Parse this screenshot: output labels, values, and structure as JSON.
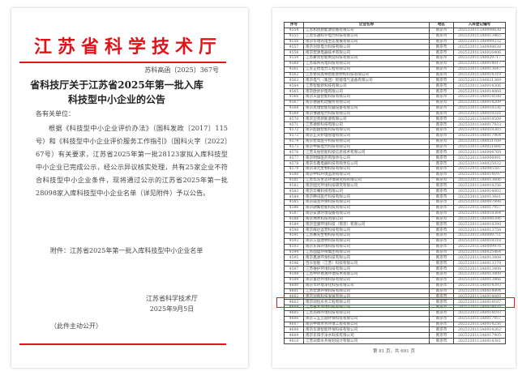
{
  "notice": {
    "org": "江苏省科学技术厅",
    "doc_number": "苏科高函〔2025〕367号",
    "title_line1": "省科技厅关于江苏省2025年第一批入库",
    "title_line2": "科技型中小企业的公告",
    "salutation": "各有关单位：",
    "body": "根据《科技型中小企业评价办法》（国科发政〔2017〕115号）和《科技型中小企业评价服务工作指引》（国科火字〔2022〕67号）有关要求，江苏省2025年第一批28123家拟入库科技型中小企业已完成公示，经公示异议核实处理，共有25家企业不符合科技型中小企业条件，现将通过公示的江苏省2025年第一批28098家入库科技型中小企业名单（详见附件）予以公告。",
    "attachment": "附件：江苏省2025年第一批入库科技型中小企业名单",
    "signer": "江苏省科学技术厅",
    "date": "2025年9月5日",
    "disclosure": "（此件主动公开）"
  },
  "colors": {
    "red": "#e0131b",
    "highlight": "#d01f2a"
  },
  "table": {
    "headers": [
      "序号",
      "企业名称",
      "地区",
      "入库登记编号"
    ],
    "highlighted_no": "4603",
    "rows": [
      [
        "4554",
        "江苏和创新能源装备有限公司",
        "南京市",
        "2025320113A0008630"
      ],
      [
        "4555",
        "江苏华通科学电力科技有限公司",
        "南京市",
        "2025320113A0013465"
      ],
      [
        "4556",
        "南京华瑞光电生态发展有限公司",
        "南京市",
        "2025320113A0009232"
      ],
      [
        "4557",
        "南京创思电力科技有限公司",
        "南京市",
        "2025320113A0008638"
      ],
      [
        "4558",
        "南京宏源电器技术有限公司",
        "南京市",
        "2025320113A0016406"
      ],
      [
        "4559",
        "江苏聚贤智能制造科技有限公司",
        "南京市",
        "2025320113A0029717"
      ],
      [
        "4560",
        "江苏森邦光电科技有限公司",
        "南京市",
        "2025320113A0014017"
      ],
      [
        "4561",
        "江苏正稳电力工程有限公司",
        "南京市",
        "2025320113A0013647"
      ],
      [
        "4562",
        "江苏协同高导智能新材料科技有限公司",
        "南京市",
        "2025320113A0014319"
      ],
      [
        "4563",
        "南京电气（集团）智能电气设备有限公司",
        "南京市",
        "2025320113A0021369"
      ],
      [
        "4564",
        "江苏智能新科技有限公司",
        "南京市",
        "2025320113A0014306"
      ],
      [
        "4565",
        "南京欧昇护理有限公司",
        "南京市",
        "2025320113A0014068"
      ],
      [
        "4566",
        "南京天盛智能科技有限公司",
        "南京市",
        "2025320113A0014188"
      ],
      [
        "4567",
        "南京德嘉机动服务有限公司",
        "南京市",
        "2025320113A0014209"
      ],
      [
        "4568",
        "南京思瑞智能仪器设备有限公司",
        "南京市",
        "2025320113A0018336"
      ],
      [
        "4569",
        "南京博通电力科技有限公司",
        "南京市",
        "2025320113A0018316"
      ],
      [
        "4570",
        "南京迈克新能源有限公司",
        "南京市",
        "2025320113A0018509"
      ],
      [
        "4571",
        "江苏德新科技有限公司",
        "南京市",
        "2025320113A0017933"
      ],
      [
        "4572",
        "南京超越智能科技有限公司",
        "南京市",
        "2025320113A0018365"
      ],
      [
        "4573",
        "南京正天护理管理有限公司",
        "南京市",
        "2025320113A0017964"
      ],
      [
        "4574",
        "南京智高医学科技有限公司",
        "南京市",
        "2025320113A0021168"
      ],
      [
        "4575",
        "南京中威电力科技有限公司",
        "南京市",
        "2025320113A0021666"
      ],
      [
        "4576",
        "江苏天佑智能科技信息技术有限公司",
        "南京市",
        "2025320113A0004769"
      ],
      [
        "4577",
        "南京明辉医药有限责任公司",
        "南京市",
        "2025320113A0004991"
      ],
      [
        "4578",
        "南京华鑫电器科技有限责任公司",
        "南京市",
        "2025320113A0025032"
      ],
      [
        "4579",
        "南京泽元生物科技有限公司",
        "南京市",
        "2025320113A0005587"
      ],
      [
        "4580",
        "南京中科环境监测有限公司",
        "南京市",
        "2025320113A0014197"
      ],
      [
        "4581",
        "江苏华东生态环境研究院有限公司",
        "南京市",
        "2025320113A0013606"
      ],
      [
        "4582",
        "南京国元环境科技研究有限公司",
        "南京市",
        "2025320113A0018356"
      ],
      [
        "4583",
        "南京云骞科技有限公司",
        "南京市",
        "2025320113A0014002"
      ],
      [
        "4584",
        "南京腾讯医疗科技有限公司",
        "南京市",
        "2025320113A0013681"
      ],
      [
        "4585",
        "南京威克环保科技有限公司",
        "南京市",
        "2025320113A0007998"
      ],
      [
        "4586",
        "南京朗鹰智能科技有限公司",
        "南京市",
        "2025320113A0017957"
      ],
      [
        "4587",
        "南京安源环境设备有限公司",
        "南京市",
        "2025320113A0018364"
      ],
      [
        "4588",
        "南京溯水科技有限公司",
        "南京市",
        "2025320113A0008306"
      ],
      [
        "4589",
        "南京亚康环境科技（南京）有限公司",
        "南京市",
        "2025320113A0018390"
      ],
      [
        "4590",
        "南京辉达运营科技有限公司",
        "南京市",
        "2025320113A0013758"
      ],
      [
        "4591",
        "江苏赛光生物科技有限公司",
        "南京市",
        "2025320113A0009751"
      ],
      [
        "4592",
        "南京方盛建材科技有限公司",
        "南京市",
        "2025320113A0018318"
      ],
      [
        "4593",
        "南京东阳环境科技有限公司",
        "南京市",
        "2025320113A0009976"
      ],
      [
        "4594",
        "江苏国盛环保集团有限公司",
        "南京市",
        "2025320113A0025464"
      ],
      [
        "4595",
        "南京鑫源环保科技有限公司",
        "南京市",
        "2025320113A0013808"
      ],
      [
        "4596",
        "百众智能（江苏）科技有限公司",
        "南京市",
        "2025320113A0013379"
      ],
      [
        "4597",
        "江苏维护环境科技有限公司",
        "南京市",
        "2025320113A0013408"
      ],
      [
        "4598",
        "江苏中环易清环境技术有限公司",
        "南京市",
        "2025320113A0013809"
      ],
      [
        "4599",
        "南京富达环境科技有限公司",
        "南京市",
        "2025320113A0013866"
      ],
      [
        "4600",
        "南京市环境净化科技有限公司",
        "南京市",
        "2025320113A0014393"
      ],
      [
        "4601",
        "江苏宏源环保科技有限公司",
        "南京市",
        "2025320113A0014004"
      ],
      [
        "4602",
        "南京润和科技发展有限公司",
        "南京市",
        "2025320113A0014069"
      ],
      [
        "4603",
        "南京润恒水务工程有限公司",
        "南京市",
        "2025320113A0014187"
      ],
      [
        "4604",
        "江苏嘉禾环境科技有限公司",
        "南京市",
        "2025320113A0014070"
      ],
      [
        "4605",
        "江苏润祥环境科技有限公司",
        "南京市",
        "2025320113A0014193"
      ],
      [
        "4606",
        "南京三五方圆环保科技有限公司",
        "南京市",
        "2025320113A0017957"
      ],
      [
        "4607",
        "南京中南水务环境工程有限公司",
        "南京市",
        "2025320113A0014256"
      ],
      [
        "4608",
        "南京华源智能环保科技有限公司",
        "南京市",
        "2025320113A0014262"
      ],
      [
        "4609",
        "南京东阳子净水科技有限公司",
        "南京市",
        "2025320113A0017905"
      ],
      [
        "4610",
        "江苏润景水务规划设计有限公司",
        "南京市",
        "2025320113A0014381"
      ]
    ]
  },
  "footer": "第 81 页，共 691 页"
}
